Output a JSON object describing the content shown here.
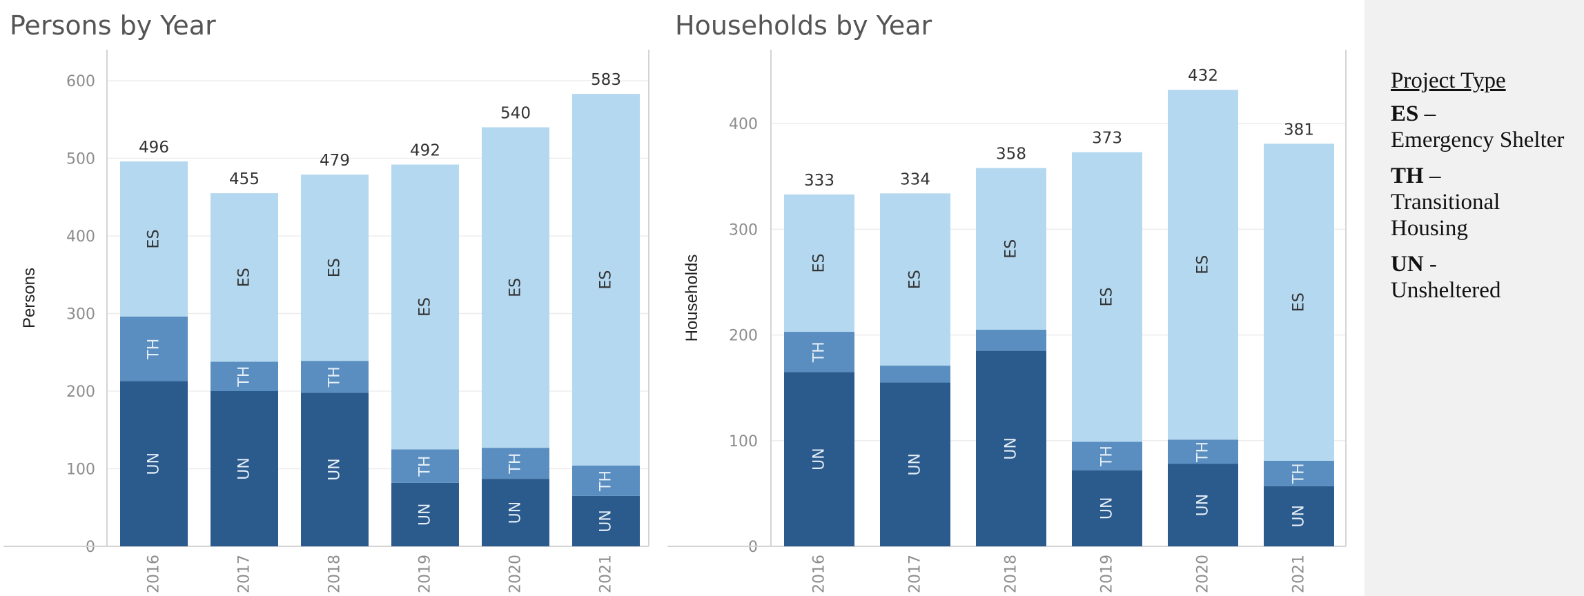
{
  "colors": {
    "UN": "#2b5a8c",
    "TH": "#5a8ec0",
    "ES": "#b4d8ef",
    "text_on_dark": "#e4eef7",
    "text_on_light": "#333333"
  },
  "legend": {
    "title": "Project Type",
    "items": [
      {
        "code": "ES",
        "sep": "–",
        "name": "Emergency Shelter"
      },
      {
        "code": "TH",
        "sep": "–",
        "name": "Transitional Housing"
      },
      {
        "code": "UN",
        "sep": "-",
        "name": "Unsheltered"
      }
    ]
  },
  "chart_data": [
    {
      "type": "bar",
      "stacked": true,
      "title": "Persons by Year",
      "xlabel": "",
      "ylabel": "Persons",
      "ylim": [
        0,
        640
      ],
      "yticks": [
        0,
        100,
        200,
        300,
        400,
        500,
        600
      ],
      "categories": [
        "2016",
        "2017",
        "2018",
        "2019",
        "2020",
        "2021"
      ],
      "series": [
        {
          "name": "UN",
          "values": [
            213,
            200,
            198,
            82,
            87,
            65
          ]
        },
        {
          "name": "TH",
          "values": [
            83,
            38,
            41,
            43,
            40,
            39
          ]
        },
        {
          "name": "ES",
          "values": [
            200,
            217,
            240,
            367,
            413,
            479
          ]
        }
      ],
      "totals": [
        496,
        455,
        479,
        492,
        540,
        583
      ]
    },
    {
      "type": "bar",
      "stacked": true,
      "title": "Households by Year",
      "xlabel": "",
      "ylabel": "Households",
      "ylim": [
        0,
        470
      ],
      "yticks": [
        0,
        100,
        200,
        300,
        400
      ],
      "categories": [
        "2016",
        "2017",
        "2018",
        "2019",
        "2020",
        "2021"
      ],
      "series": [
        {
          "name": "UN",
          "values": [
            165,
            155,
            185,
            72,
            78,
            57
          ]
        },
        {
          "name": "TH",
          "values": [
            38,
            16,
            20,
            27,
            23,
            24
          ]
        },
        {
          "name": "ES",
          "values": [
            130,
            163,
            153,
            274,
            331,
            300
          ]
        }
      ],
      "totals": [
        333,
        334,
        358,
        373,
        432,
        381
      ]
    }
  ]
}
